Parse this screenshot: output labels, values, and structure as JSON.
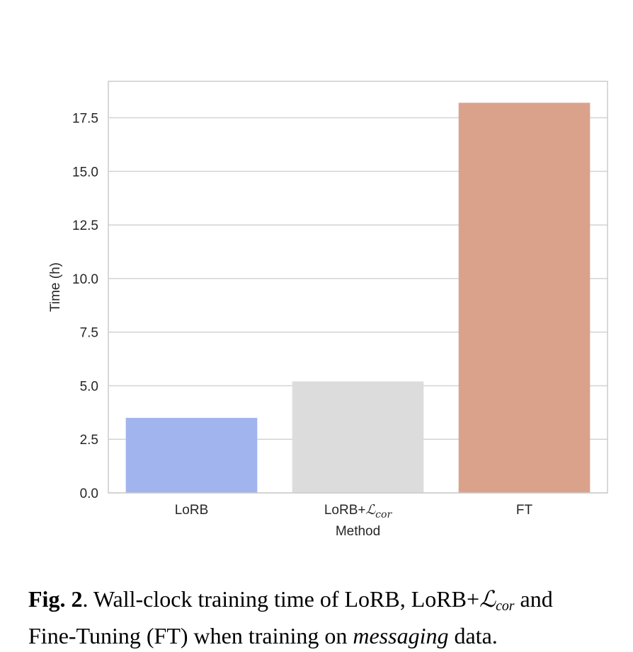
{
  "chart_data": {
    "type": "bar",
    "categories": [
      "LoRB",
      "LoRB+ℒcor",
      "FT"
    ],
    "category_parts": [
      {
        "base": "LoRB",
        "math": ""
      },
      {
        "base": "LoRB+",
        "math": "ℒcor"
      },
      {
        "base": "FT",
        "math": ""
      }
    ],
    "values": [
      3.5,
      5.2,
      18.2
    ],
    "colors": [
      "#a1b4ed",
      "#dcdcdc",
      "#dba28b"
    ],
    "xlabel": "Method",
    "ylabel": "Time (h)",
    "ylim": [
      0,
      19.2
    ],
    "yticks": [
      0.0,
      2.5,
      5.0,
      7.5,
      10.0,
      12.5,
      15.0,
      17.5
    ],
    "ytick_labels": [
      "0.0",
      "2.5",
      "5.0",
      "7.5",
      "10.0",
      "12.5",
      "15.0",
      "17.5"
    ],
    "grid": true,
    "grid_color": "#d3d3d3",
    "frame_color": "#cccccc"
  },
  "caption": {
    "label": "Fig. 2",
    "line1_a": ".  Wall-clock training time of LoRB, LoRB+",
    "line1_math": "ℒ",
    "line1_math_sub": "cor",
    "line1_b": " and",
    "line2_a": "Fine-Tuning (FT) when training on ",
    "line2_em": "messaging",
    "line2_b": " data."
  }
}
